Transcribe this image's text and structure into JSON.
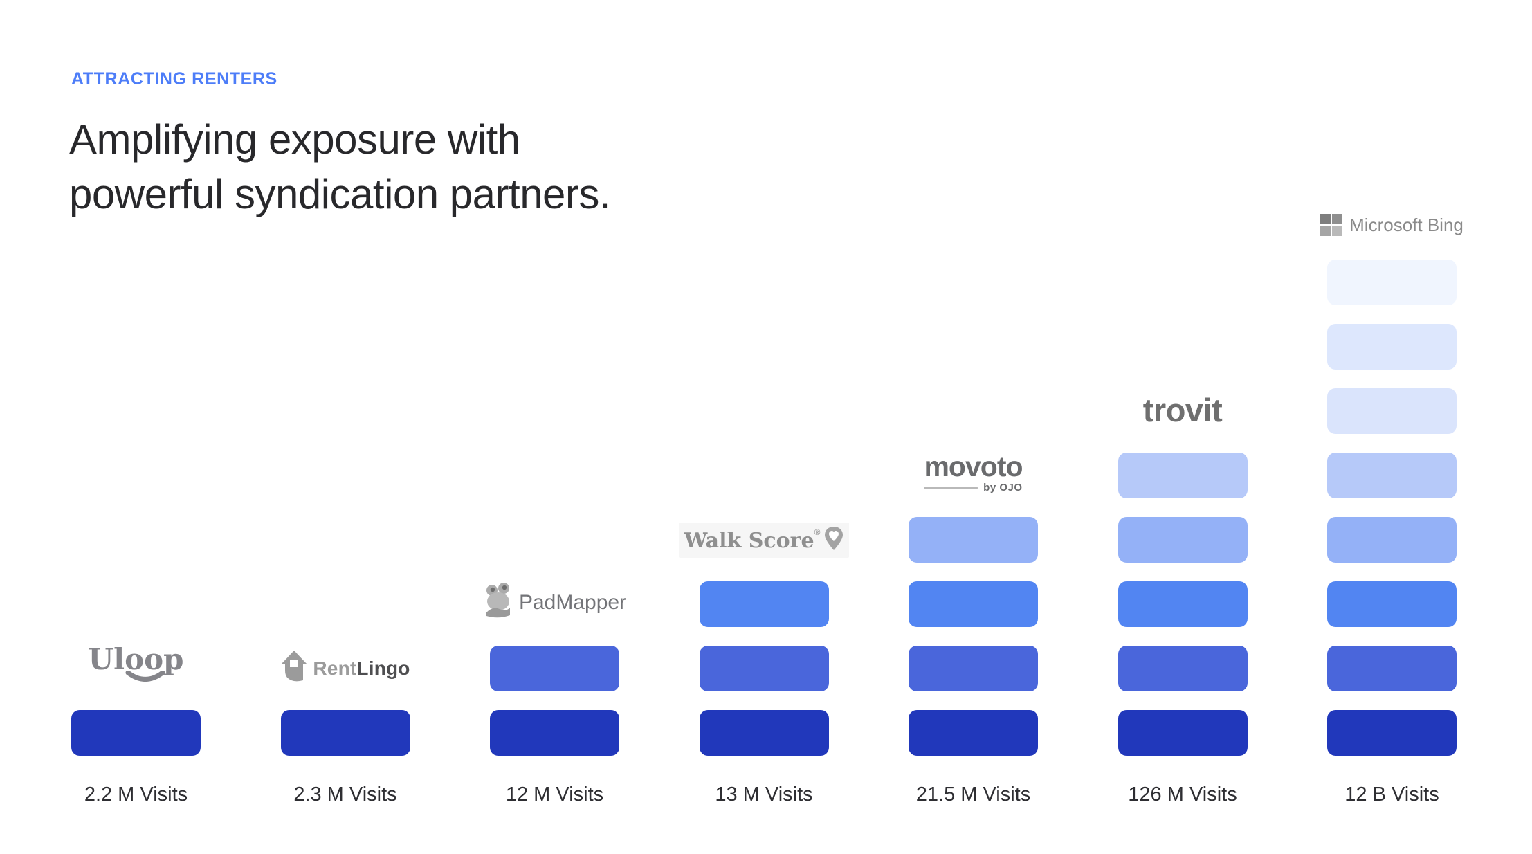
{
  "header": {
    "eyebrow": "ATTRACTING RENTERS",
    "eyebrow_color": "#4D7DF8",
    "title_line1": "Amplifying exposure with",
    "title_line2": "powerful syndication partners.",
    "title_color": "#28282B"
  },
  "chart_data": {
    "type": "bar",
    "title": "Amplifying exposure with powerful syndication partners.",
    "categories": [
      "Uloop",
      "RentLingo",
      "PadMapper",
      "Walk Score",
      "Movoto by OJO",
      "Trovit",
      "Microsoft Bing"
    ],
    "blocks": [
      1,
      1,
      2,
      3,
      4,
      5,
      8
    ],
    "values_visits_millions": [
      2.2,
      2.3,
      12,
      13,
      21.5,
      126,
      12000
    ],
    "labels": [
      "2.2 M Visits",
      "2.3 M Visits",
      "12 M Visits",
      "13 M Visits",
      "21.5 M Visits",
      "126 M Visits",
      "12 B Visits"
    ],
    "palette_bottom_to_top": [
      "#2138BB",
      "#4A66DB",
      "#5285F2",
      "#94B1F7",
      "#B6C9F9",
      "#DAE4FC",
      "#DDE7FD",
      "#F0F5FE"
    ],
    "legend_position": "none",
    "grid": false
  },
  "logos": {
    "uloop": {
      "text": "Uloop"
    },
    "rentlingo": {
      "text_rent": "Rent",
      "text_lingo": "Lingo"
    },
    "padmapper": {
      "text": "PadMapper"
    },
    "walkscore": {
      "text": "Walk Score",
      "reg": "®"
    },
    "movoto": {
      "text": "movoto",
      "byline": "by OJO"
    },
    "trovit": {
      "text": "trovit"
    },
    "bing": {
      "text": "Microsoft Bing"
    }
  }
}
